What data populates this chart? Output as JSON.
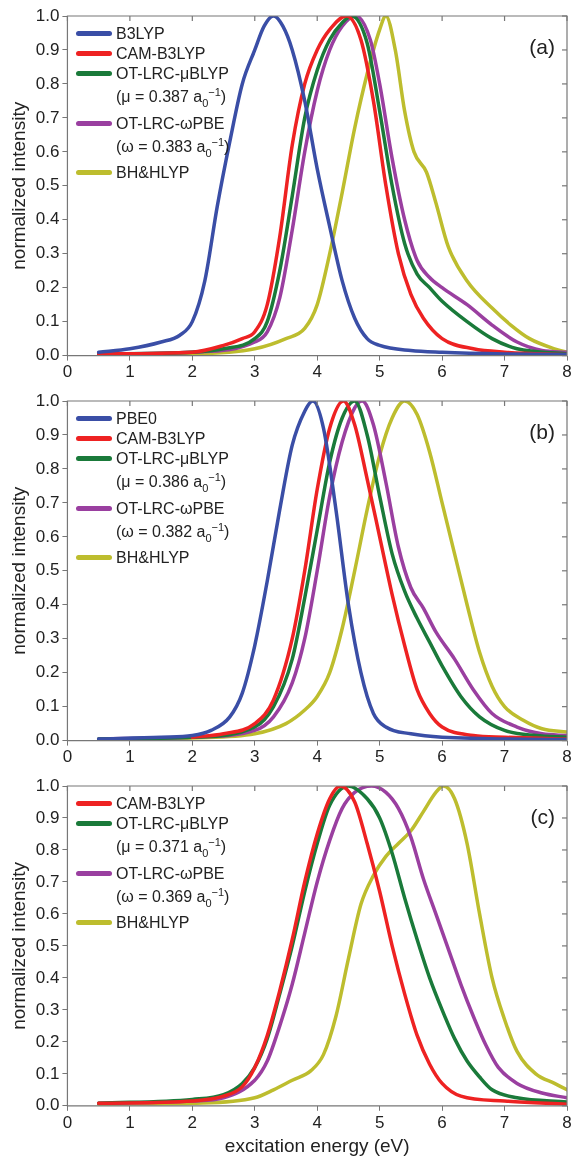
{
  "chart_data": [
    {
      "type": "line",
      "ylabel": "normalized intensity",
      "annotations": [
        "(a)"
      ],
      "legend": "top left",
      "grid": false,
      "xlim": [
        0,
        8
      ],
      "xticks": [
        0,
        1,
        2,
        3,
        4,
        5,
        6,
        7,
        8
      ],
      "ylim": [
        0,
        1
      ],
      "yticks": [
        {
          "value": 0,
          "label": "0.0"
        },
        {
          "value": 0.1,
          "label": "0.1"
        },
        {
          "value": 0.2,
          "label": "0.2"
        },
        {
          "value": 0.3,
          "label": "0.3"
        },
        {
          "value": 0.4,
          "label": "0.4"
        },
        {
          "value": 0.5,
          "label": "0.5"
        },
        {
          "value": 0.6,
          "label": "0.6"
        },
        {
          "value": 0.7,
          "label": "0.7"
        },
        {
          "value": 0.8,
          "label": "0.8"
        },
        {
          "value": 0.9,
          "label": "0.9"
        },
        {
          "value": 1,
          "label": "1.0"
        }
      ],
      "series": [
        {
          "name": "B3LYP",
          "color": "#3a4ea6",
          "x": [
            0.5,
            1,
            1.5,
            1.8,
            2,
            2.2,
            2.4,
            2.6,
            2.8,
            3,
            3.15,
            3.3,
            3.45,
            3.6,
            3.8,
            4,
            4.2,
            4.4,
            4.6,
            4.8,
            5,
            5.5,
            6,
            7,
            8
          ],
          "values": [
            0.01,
            0.02,
            0.04,
            0.06,
            0.1,
            0.22,
            0.44,
            0.63,
            0.8,
            0.9,
            0.97,
            1,
            0.97,
            0.9,
            0.75,
            0.55,
            0.38,
            0.22,
            0.11,
            0.05,
            0.03,
            0.015,
            0.01,
            0.005,
            0.003
          ]
        },
        {
          "name": "CAM-B3LYP",
          "color": "#ee2222",
          "x": [
            0.5,
            2,
            2.5,
            2.8,
            3,
            3.2,
            3.4,
            3.6,
            3.8,
            4,
            4.2,
            4.47,
            4.7,
            4.9,
            5.1,
            5.3,
            5.5,
            5.7,
            6,
            6.5,
            7,
            8
          ],
          "values": [
            0.005,
            0.01,
            0.03,
            0.05,
            0.07,
            0.15,
            0.35,
            0.62,
            0.8,
            0.9,
            0.96,
            1,
            0.93,
            0.75,
            0.5,
            0.3,
            0.18,
            0.11,
            0.05,
            0.02,
            0.01,
            0.003
          ]
        },
        {
          "name": "OT-LRC-μBLYP (μ = 0.387 a$_{0}$$^{−1}$)",
          "color": "#1a7a3a",
          "x": [
            0.5,
            2,
            2.5,
            3,
            3.2,
            3.4,
            3.6,
            3.8,
            4,
            4.2,
            4.4,
            4.55,
            4.8,
            5,
            5.2,
            5.4,
            5.6,
            5.8,
            6,
            6.4,
            6.8,
            7.2,
            8
          ],
          "values": [
            0.005,
            0.01,
            0.02,
            0.05,
            0.1,
            0.25,
            0.47,
            0.7,
            0.84,
            0.93,
            0.98,
            1,
            0.92,
            0.72,
            0.5,
            0.33,
            0.24,
            0.2,
            0.16,
            0.1,
            0.05,
            0.02,
            0.005
          ]
        },
        {
          "name": "OT-LRC-ωPBE (ω = 0.383 a$_{0}$$^{−1}$)",
          "color": "#9a3fa0",
          "x": [
            0.5,
            2,
            3,
            3.2,
            3.4,
            3.6,
            3.8,
            4,
            4.2,
            4.4,
            4.62,
            4.85,
            5,
            5.2,
            5.4,
            5.6,
            5.8,
            6,
            6.4,
            6.8,
            7.2,
            7.6,
            8
          ],
          "values": [
            0.005,
            0.01,
            0.04,
            0.07,
            0.17,
            0.37,
            0.6,
            0.78,
            0.9,
            0.97,
            1,
            0.93,
            0.8,
            0.58,
            0.4,
            0.28,
            0.23,
            0.2,
            0.15,
            0.09,
            0.04,
            0.015,
            0.01
          ]
        },
        {
          "name": "BH&HLYP",
          "color": "#bdbd2e",
          "x": [
            0.5,
            2,
            3,
            3.5,
            3.8,
            4,
            4.2,
            4.4,
            4.6,
            4.8,
            5,
            5.1,
            5.25,
            5.4,
            5.55,
            5.75,
            5.9,
            6.1,
            6.4,
            6.8,
            7.1,
            7.4,
            7.8,
            8
          ],
          "values": [
            0.003,
            0.005,
            0.02,
            0.05,
            0.08,
            0.15,
            0.3,
            0.48,
            0.67,
            0.83,
            0.96,
            1,
            0.9,
            0.72,
            0.6,
            0.54,
            0.45,
            0.32,
            0.22,
            0.14,
            0.09,
            0.05,
            0.02,
            0.01
          ]
        }
      ]
    },
    {
      "type": "line",
      "ylabel": "normalized intensity",
      "annotations": [
        "(b)"
      ],
      "legend": "top left",
      "grid": false,
      "xlim": [
        0,
        8
      ],
      "xticks": [
        0,
        1,
        2,
        3,
        4,
        5,
        6,
        7,
        8
      ],
      "ylim": [
        0,
        1
      ],
      "yticks": [
        {
          "value": 0,
          "label": "0.0"
        },
        {
          "value": 0.1,
          "label": "0.1"
        },
        {
          "value": 0.2,
          "label": "0.2"
        },
        {
          "value": 0.3,
          "label": "0.3"
        },
        {
          "value": 0.4,
          "label": "0.4"
        },
        {
          "value": 0.5,
          "label": "0.5"
        },
        {
          "value": 0.6,
          "label": "0.6"
        },
        {
          "value": 0.7,
          "label": "0.7"
        },
        {
          "value": 0.8,
          "label": "0.8"
        },
        {
          "value": 0.9,
          "label": "0.9"
        },
        {
          "value": 1,
          "label": "1.0"
        }
      ],
      "series": [
        {
          "name": "PBE0",
          "color": "#3a4ea6",
          "x": [
            0.5,
            1.5,
            2,
            2.3,
            2.6,
            2.8,
            3,
            3.2,
            3.4,
            3.6,
            3.8,
            3.93,
            4.1,
            4.3,
            4.5,
            4.7,
            4.9,
            5.1,
            5.5,
            6,
            8
          ],
          "values": [
            0.005,
            0.01,
            0.015,
            0.03,
            0.07,
            0.14,
            0.28,
            0.47,
            0.68,
            0.87,
            0.97,
            1,
            0.92,
            0.68,
            0.4,
            0.2,
            0.08,
            0.04,
            0.02,
            0.01,
            0.003
          ]
        },
        {
          "name": "CAM-B3LYP",
          "color": "#ee2222",
          "x": [
            2,
            2.5,
            3,
            3.3,
            3.6,
            3.8,
            4,
            4.2,
            4.42,
            4.6,
            4.8,
            5,
            5.2,
            5.4,
            5.6,
            5.8,
            6,
            6.5,
            7,
            8
          ],
          "values": [
            0.01,
            0.02,
            0.05,
            0.12,
            0.3,
            0.5,
            0.74,
            0.92,
            1,
            0.93,
            0.77,
            0.6,
            0.43,
            0.28,
            0.15,
            0.08,
            0.04,
            0.015,
            0.01,
            0.005
          ]
        },
        {
          "name": "OT-LRC-μBLYP (μ = 0.386 a$_{0}$$^{−1}$)",
          "color": "#1a7a3a",
          "x": [
            0.5,
            2,
            3,
            3.3,
            3.6,
            3.8,
            4,
            4.2,
            4.4,
            4.6,
            4.8,
            5,
            5.2,
            5.4,
            5.6,
            5.8,
            6,
            6.3,
            6.6,
            7,
            7.5,
            8
          ],
          "values": [
            0.005,
            0.01,
            0.04,
            0.1,
            0.24,
            0.42,
            0.62,
            0.82,
            0.95,
            1,
            0.9,
            0.72,
            0.55,
            0.44,
            0.36,
            0.29,
            0.22,
            0.13,
            0.07,
            0.03,
            0.015,
            0.01
          ]
        },
        {
          "name": "OT-LRC-ωPBE (ω = 0.382 a$_{0}$$^{−1}$)",
          "color": "#9a3fa0",
          "x": [
            0.5,
            2,
            3,
            3.3,
            3.6,
            3.8,
            4,
            4.2,
            4.4,
            4.6,
            4.72,
            4.9,
            5.1,
            5.3,
            5.5,
            5.7,
            5.9,
            6.2,
            6.5,
            6.8,
            7.2,
            7.6,
            8
          ],
          "values": [
            0.005,
            0.01,
            0.03,
            0.07,
            0.17,
            0.3,
            0.5,
            0.72,
            0.88,
            0.98,
            1,
            0.93,
            0.76,
            0.57,
            0.45,
            0.39,
            0.32,
            0.24,
            0.15,
            0.08,
            0.04,
            0.02,
            0.015
          ]
        },
        {
          "name": "BH&HLYP",
          "color": "#bdbd2e",
          "x": [
            0.5,
            2,
            3,
            3.5,
            3.8,
            4,
            4.2,
            4.4,
            4.6,
            4.8,
            5,
            5.2,
            5.4,
            5.6,
            5.8,
            6,
            6.2,
            6.4,
            6.6,
            6.8,
            7,
            7.3,
            7.6,
            8
          ],
          "values": [
            0.003,
            0.008,
            0.02,
            0.05,
            0.09,
            0.13,
            0.2,
            0.33,
            0.5,
            0.68,
            0.84,
            0.95,
            1,
            0.96,
            0.85,
            0.7,
            0.55,
            0.4,
            0.26,
            0.16,
            0.1,
            0.06,
            0.035,
            0.025
          ]
        }
      ]
    },
    {
      "type": "line",
      "xlabel": "excitation energy (eV)",
      "ylabel": "normalized intensity",
      "annotations": [
        "(c)"
      ],
      "legend": "top left",
      "grid": false,
      "xlim": [
        0,
        8
      ],
      "xticks": [
        0,
        1,
        2,
        3,
        4,
        5,
        6,
        7,
        8
      ],
      "ylim": [
        0,
        1
      ],
      "yticks": [
        {
          "value": 0,
          "label": "0.0"
        },
        {
          "value": 0.1,
          "label": "0.1"
        },
        {
          "value": 0.2,
          "label": "0.2"
        },
        {
          "value": 0.3,
          "label": "0.3"
        },
        {
          "value": 0.4,
          "label": "0.4"
        },
        {
          "value": 0.5,
          "label": "0.5"
        },
        {
          "value": 0.6,
          "label": "0.6"
        },
        {
          "value": 0.7,
          "label": "0.7"
        },
        {
          "value": 0.8,
          "label": "0.8"
        },
        {
          "value": 0.9,
          "label": "0.9"
        },
        {
          "value": 1,
          "label": "1.0"
        }
      ],
      "series": [
        {
          "name": "CAM-B3LYP",
          "color": "#ee2222",
          "x": [
            0.5,
            2,
            2.5,
            2.8,
            3,
            3.2,
            3.4,
            3.6,
            3.8,
            4,
            4.2,
            4.37,
            4.6,
            4.8,
            5,
            5.2,
            5.4,
            5.6,
            5.8,
            6,
            6.3,
            7,
            8
          ],
          "values": [
            0.008,
            0.015,
            0.03,
            0.06,
            0.12,
            0.22,
            0.36,
            0.52,
            0.7,
            0.85,
            0.96,
            1,
            0.95,
            0.82,
            0.67,
            0.5,
            0.35,
            0.22,
            0.13,
            0.07,
            0.03,
            0.015,
            0.005
          ]
        },
        {
          "name": "OT-LRC-μBLYP (μ = 0.371 a$_{0}$$^{−1}$)",
          "color": "#1a7a3a",
          "x": [
            0.5,
            2,
            2.5,
            2.8,
            3,
            3.2,
            3.4,
            3.6,
            3.8,
            4,
            4.2,
            4.5,
            4.8,
            5,
            5.2,
            5.4,
            5.6,
            5.8,
            6,
            6.2,
            6.4,
            6.6,
            6.8,
            7.2,
            8
          ],
          "values": [
            0.008,
            0.02,
            0.035,
            0.07,
            0.12,
            0.21,
            0.35,
            0.5,
            0.67,
            0.82,
            0.94,
            1,
            0.96,
            0.9,
            0.79,
            0.65,
            0.52,
            0.4,
            0.3,
            0.21,
            0.14,
            0.09,
            0.05,
            0.025,
            0.012
          ]
        },
        {
          "name": "OT-LRC-ωPBE (ω = 0.369 a$_{0}$$^{−1}$)",
          "color": "#9a3fa0",
          "x": [
            0.5,
            2,
            2.5,
            3,
            3.2,
            3.4,
            3.6,
            3.8,
            4,
            4.2,
            4.4,
            4.6,
            4.87,
            5.1,
            5.3,
            5.5,
            5.7,
            5.9,
            6.1,
            6.3,
            6.5,
            6.7,
            6.9,
            7.2,
            7.6,
            8
          ],
          "values": [
            0.008,
            0.015,
            0.025,
            0.08,
            0.14,
            0.25,
            0.38,
            0.54,
            0.7,
            0.83,
            0.93,
            0.98,
            1,
            0.98,
            0.93,
            0.84,
            0.71,
            0.6,
            0.49,
            0.38,
            0.28,
            0.19,
            0.12,
            0.07,
            0.04,
            0.025
          ]
        },
        {
          "name": "BH&HLYP",
          "color": "#bdbd2e",
          "x": [
            0.5,
            2,
            3,
            3.3,
            3.6,
            3.9,
            4.1,
            4.3,
            4.5,
            4.7,
            4.9,
            5.1,
            5.3,
            5.5,
            5.7,
            5.9,
            6.02,
            6.2,
            6.4,
            6.6,
            6.8,
            7,
            7.2,
            7.5,
            7.8,
            8
          ],
          "values": [
            0.005,
            0.008,
            0.025,
            0.05,
            0.08,
            0.11,
            0.16,
            0.28,
            0.46,
            0.63,
            0.72,
            0.78,
            0.82,
            0.86,
            0.92,
            0.98,
            1,
            0.96,
            0.82,
            0.6,
            0.4,
            0.27,
            0.17,
            0.1,
            0.07,
            0.05
          ]
        }
      ]
    }
  ]
}
